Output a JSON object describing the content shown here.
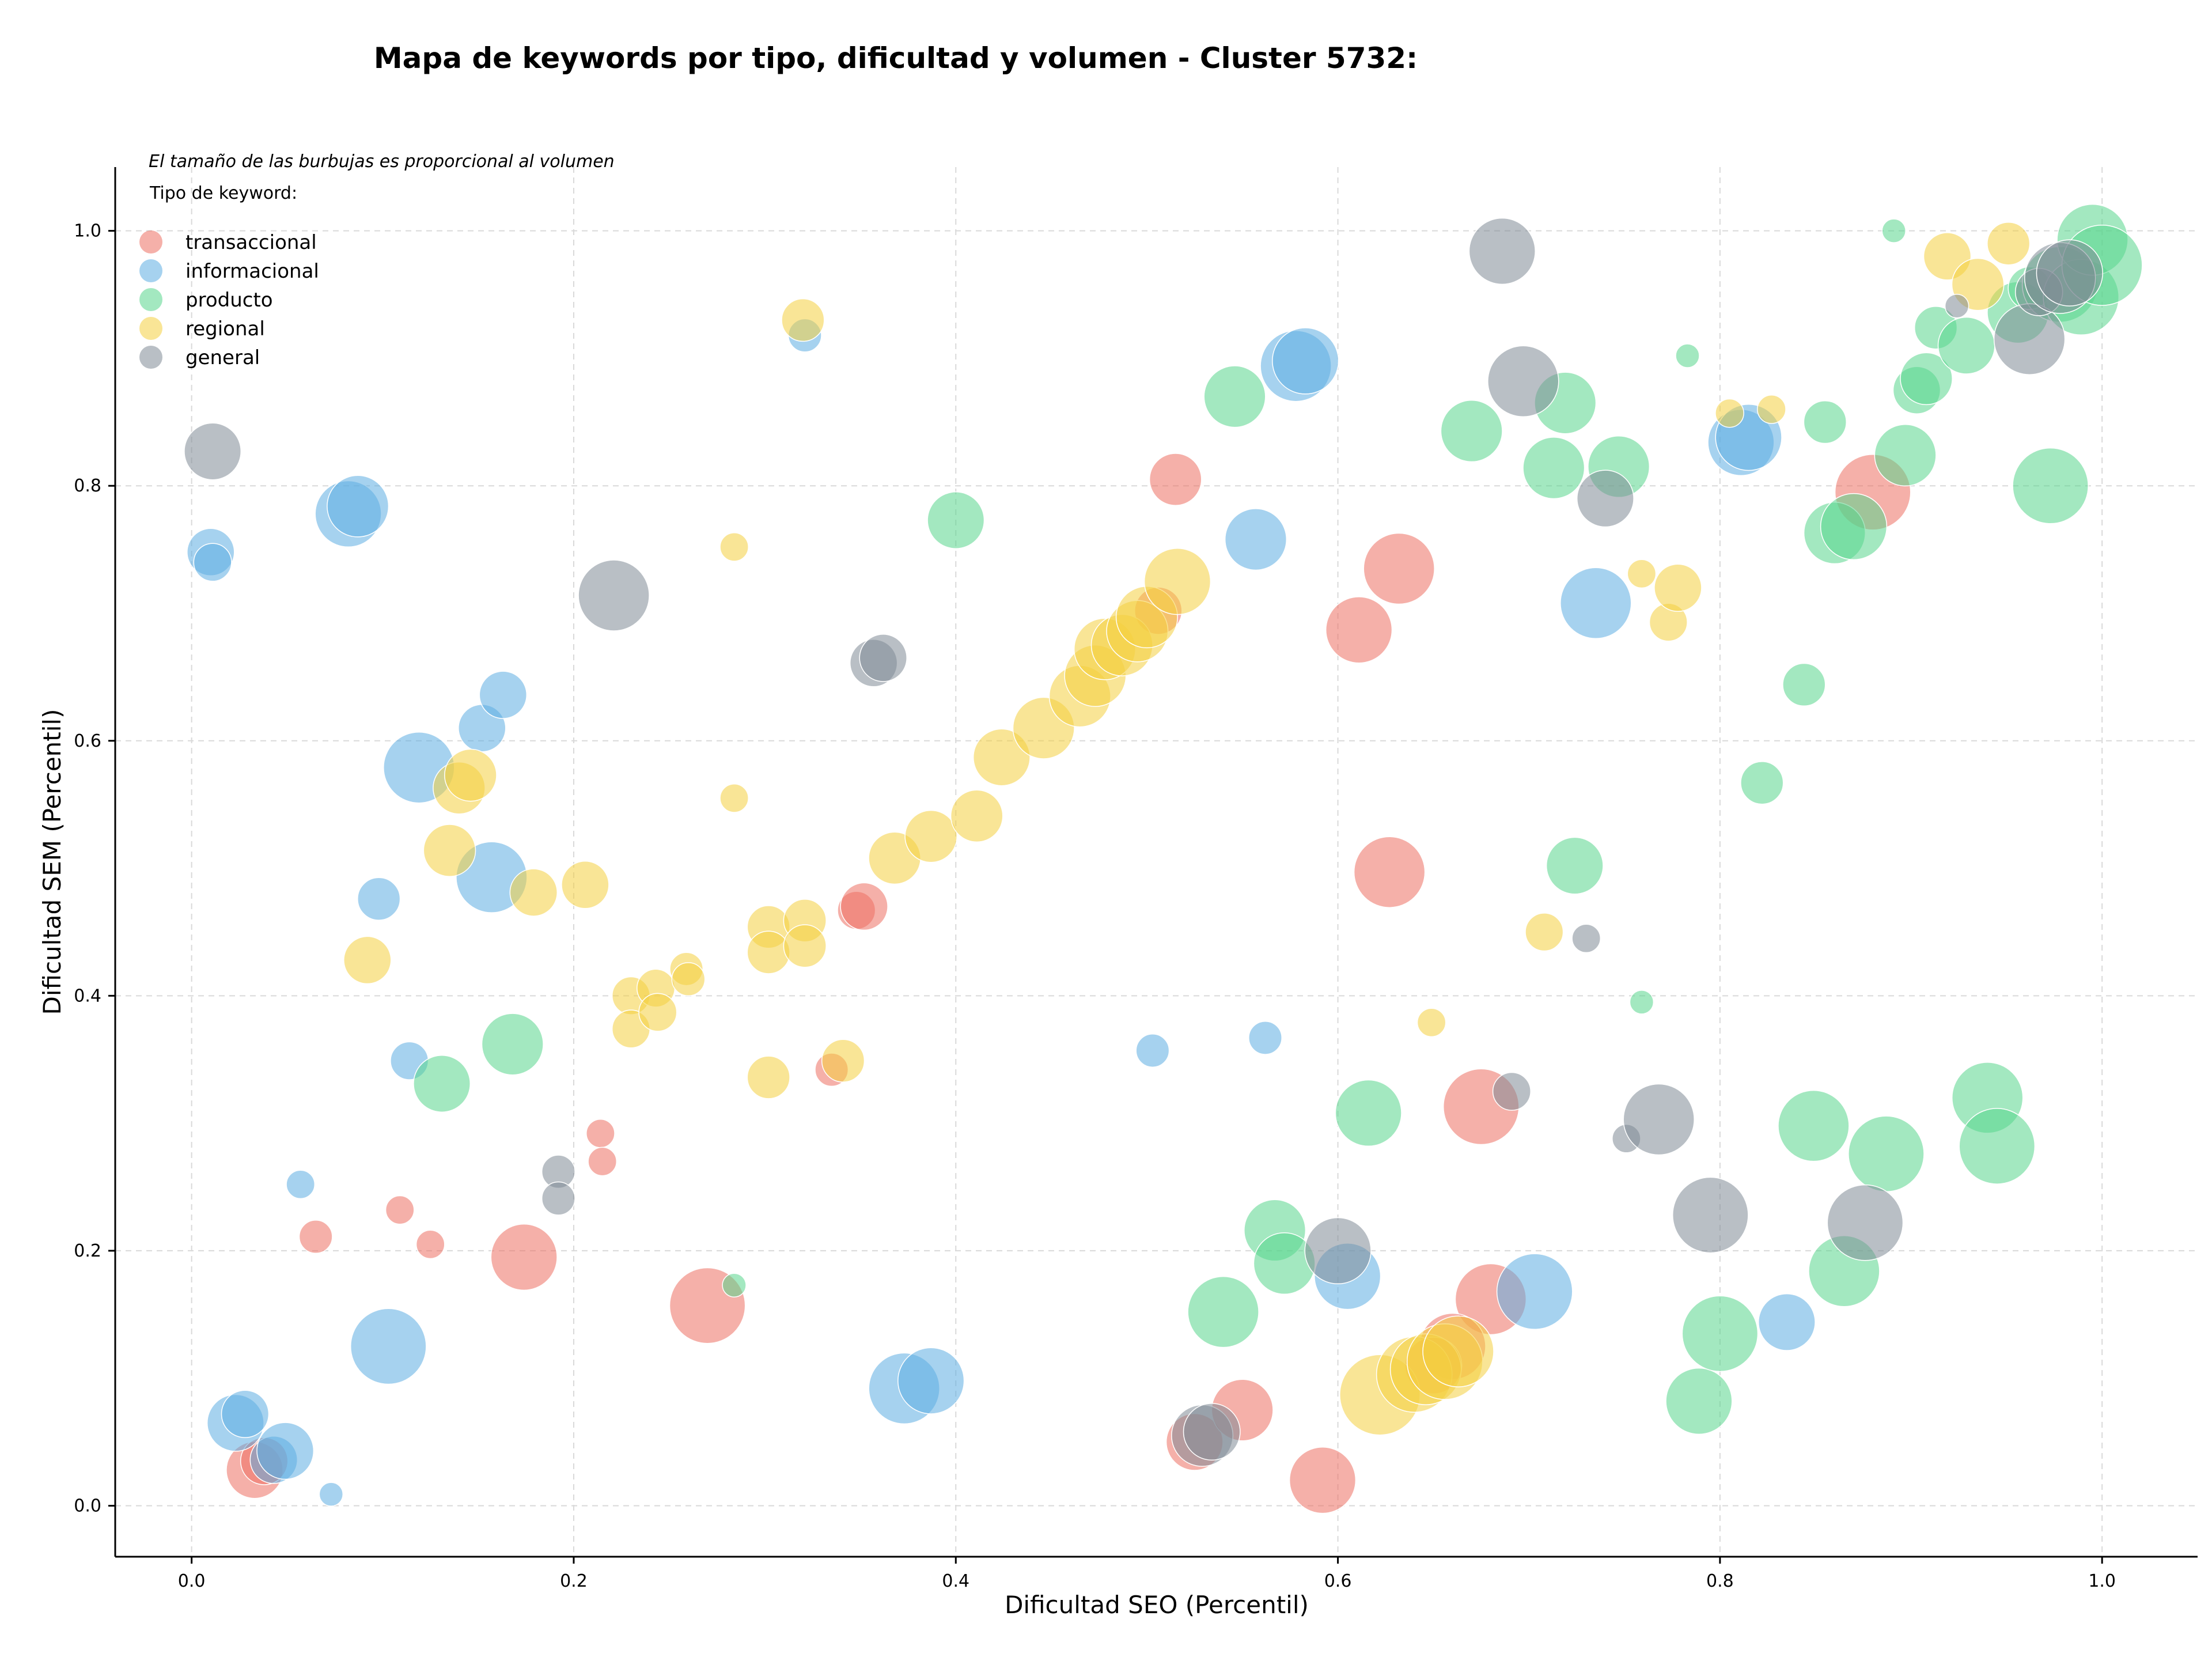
{
  "chart_data": {
    "type": "scatter",
    "title": "Mapa de keywords por tipo, dificultad y volumen - Cluster 5732:",
    "xlabel": "Dificultad SEO (Percentil)",
    "ylabel": "Dificultad SEM (Percentil)",
    "note": "El tamaño de las burbujas es proporcional al volumen",
    "legend_title": "Tipo de keyword:",
    "legend_position": "top-left",
    "grid": true,
    "xlim": [
      -0.04,
      1.05
    ],
    "ylim": [
      -0.04,
      1.05
    ],
    "x_ticks": [
      "0.0",
      "0.2",
      "0.4",
      "0.6",
      "0.8",
      "1.0"
    ],
    "y_ticks": [
      "0.0",
      "0.2",
      "0.4",
      "0.6",
      "0.8",
      "1.0"
    ],
    "size_scale": "radius proportional to volume (relative units 1-10)",
    "series": [
      {
        "name": "transaccional",
        "color": "#ec7063",
        "points": [
          [
            0.033,
            0.028,
            6
          ],
          [
            0.038,
            0.035,
            5
          ],
          [
            0.065,
            0.211,
            3.5
          ],
          [
            0.109,
            0.232,
            3
          ],
          [
            0.125,
            0.205,
            3
          ],
          [
            0.174,
            0.195,
            7
          ],
          [
            0.214,
            0.292,
            3
          ],
          [
            0.215,
            0.27,
            3
          ],
          [
            0.27,
            0.157,
            8
          ],
          [
            0.335,
            0.342,
            3.5
          ],
          [
            0.348,
            0.467,
            4
          ],
          [
            0.352,
            0.47,
            5
          ],
          [
            0.506,
            0.702,
            5
          ],
          [
            0.515,
            0.805,
            5.5
          ],
          [
            0.525,
            0.05,
            6
          ],
          [
            0.55,
            0.075,
            6.5
          ],
          [
            0.592,
            0.02,
            7
          ],
          [
            0.611,
            0.687,
            7
          ],
          [
            0.632,
            0.735,
            7.5
          ],
          [
            0.627,
            0.497,
            7.5
          ],
          [
            0.675,
            0.313,
            8
          ],
          [
            0.68,
            0.162,
            7.5
          ],
          [
            0.66,
            0.125,
            7
          ],
          [
            0.65,
            0.11,
            6
          ],
          [
            0.88,
            0.795,
            8
          ]
        ]
      },
      {
        "name": "informacional",
        "color": "#5dade2",
        "points": [
          [
            0.01,
            0.748,
            5
          ],
          [
            0.011,
            0.74,
            4
          ],
          [
            0.023,
            0.065,
            6
          ],
          [
            0.028,
            0.072,
            5
          ],
          [
            0.043,
            0.036,
            5
          ],
          [
            0.049,
            0.043,
            6
          ],
          [
            0.057,
            0.252,
            3
          ],
          [
            0.073,
            0.009,
            2.5
          ],
          [
            0.082,
            0.778,
            7
          ],
          [
            0.087,
            0.784,
            6.5
          ],
          [
            0.098,
            0.476,
            4.5
          ],
          [
            0.103,
            0.125,
            8
          ],
          [
            0.114,
            0.349,
            4
          ],
          [
            0.119,
            0.579,
            7.5
          ],
          [
            0.152,
            0.61,
            5
          ],
          [
            0.163,
            0.636,
            5
          ],
          [
            0.157,
            0.493,
            7.5
          ],
          [
            0.321,
            0.918,
            3.5
          ],
          [
            0.373,
            0.092,
            7.5
          ],
          [
            0.387,
            0.098,
            7
          ],
          [
            0.503,
            0.357,
            3.5
          ],
          [
            0.557,
            0.758,
            6.5
          ],
          [
            0.562,
            0.367,
            3.5
          ],
          [
            0.578,
            0.894,
            7.5
          ],
          [
            0.583,
            0.898,
            7
          ],
          [
            0.605,
            0.18,
            7
          ],
          [
            0.703,
            0.168,
            8
          ],
          [
            0.735,
            0.708,
            7.5
          ],
          [
            0.811,
            0.834,
            7
          ],
          [
            0.815,
            0.838,
            7
          ],
          [
            0.835,
            0.144,
            6
          ]
        ]
      },
      {
        "name": "producto",
        "color": "#58d68d",
        "points": [
          [
            0.131,
            0.331,
            6
          ],
          [
            0.168,
            0.362,
            6.5
          ],
          [
            0.284,
            0.173,
            2.5
          ],
          [
            0.4,
            0.773,
            6
          ],
          [
            0.54,
            0.152,
            7.5
          ],
          [
            0.546,
            0.87,
            6.5
          ],
          [
            0.567,
            0.216,
            6.5
          ],
          [
            0.572,
            0.19,
            6.5
          ],
          [
            0.616,
            0.308,
            7
          ],
          [
            0.67,
            0.843,
            6.5
          ],
          [
            0.713,
            0.814,
            6.5
          ],
          [
            0.719,
            0.865,
            6.5
          ],
          [
            0.724,
            0.502,
            6
          ],
          [
            0.747,
            0.815,
            6.5
          ],
          [
            0.759,
            0.395,
            2.5
          ],
          [
            0.783,
            0.902,
            2.5
          ],
          [
            0.789,
            0.082,
            7
          ],
          [
            0.8,
            0.135,
            8
          ],
          [
            0.822,
            0.567,
            4.5
          ],
          [
            0.844,
            0.644,
            4.5
          ],
          [
            0.849,
            0.298,
            7.5
          ],
          [
            0.855,
            0.85,
            4.5
          ],
          [
            0.86,
            0.763,
            6.5
          ],
          [
            0.865,
            0.184,
            7.5
          ],
          [
            0.87,
            0.768,
            7
          ],
          [
            0.887,
            0.276,
            8
          ],
          [
            0.891,
            1.0,
            2.5
          ],
          [
            0.897,
            0.824,
            6.5
          ],
          [
            0.903,
            0.875,
            5
          ],
          [
            0.908,
            0.884,
            5.5
          ],
          [
            0.913,
            0.924,
            4.5
          ],
          [
            0.929,
            0.91,
            6
          ],
          [
            0.94,
            0.32,
            7.5
          ],
          [
            0.945,
            0.282,
            8
          ],
          [
            0.956,
            0.936,
            6.5
          ],
          [
            0.962,
            0.955,
            4.5
          ],
          [
            0.973,
            0.8,
            8
          ],
          [
            0.978,
            0.958,
            8
          ],
          [
            0.989,
            0.948,
            8
          ],
          [
            0.995,
            0.993,
            7.5
          ],
          [
            1.0,
            0.973,
            8.5
          ]
        ]
      },
      {
        "name": "regional",
        "color": "#f4d03f",
        "points": [
          [
            0.092,
            0.428,
            5
          ],
          [
            0.135,
            0.514,
            5.5
          ],
          [
            0.14,
            0.563,
            5.5
          ],
          [
            0.146,
            0.573,
            5.5
          ],
          [
            0.179,
            0.481,
            5
          ],
          [
            0.206,
            0.487,
            5
          ],
          [
            0.23,
            0.4,
            4
          ],
          [
            0.23,
            0.374,
            4
          ],
          [
            0.243,
            0.406,
            4
          ],
          [
            0.244,
            0.387,
            4
          ],
          [
            0.259,
            0.421,
            3.5
          ],
          [
            0.26,
            0.413,
            3.5
          ],
          [
            0.284,
            0.752,
            3
          ],
          [
            0.284,
            0.555,
            3
          ],
          [
            0.302,
            0.454,
            4.5
          ],
          [
            0.302,
            0.434,
            4.5
          ],
          [
            0.302,
            0.336,
            4.5
          ],
          [
            0.32,
            0.93,
            4.5
          ],
          [
            0.321,
            0.459,
            4.5
          ],
          [
            0.321,
            0.439,
            4.5
          ],
          [
            0.341,
            0.349,
            4.5
          ],
          [
            0.368,
            0.508,
            5.5
          ],
          [
            0.387,
            0.525,
            5.5
          ],
          [
            0.411,
            0.541,
            5.5
          ],
          [
            0.424,
            0.587,
            6
          ],
          [
            0.446,
            0.61,
            6.5
          ],
          [
            0.465,
            0.635,
            6.5
          ],
          [
            0.473,
            0.651,
            6.5
          ],
          [
            0.478,
            0.672,
            6.5
          ],
          [
            0.487,
            0.675,
            6.5
          ],
          [
            0.495,
            0.686,
            6.5
          ],
          [
            0.5,
            0.697,
            6.5
          ],
          [
            0.516,
            0.725,
            7
          ],
          [
            0.622,
            0.087,
            8.5
          ],
          [
            0.64,
            0.103,
            8
          ],
          [
            0.646,
            0.107,
            7.5
          ],
          [
            0.649,
            0.379,
            3
          ],
          [
            0.656,
            0.113,
            8
          ],
          [
            0.663,
            0.121,
            7.5
          ],
          [
            0.708,
            0.45,
            4
          ],
          [
            0.759,
            0.731,
            3
          ],
          [
            0.773,
            0.693,
            4
          ],
          [
            0.778,
            0.72,
            5
          ],
          [
            0.805,
            0.857,
            3
          ],
          [
            0.827,
            0.86,
            3
          ],
          [
            0.919,
            0.98,
            5
          ],
          [
            0.935,
            0.958,
            5.5
          ],
          [
            0.951,
            0.99,
            4.5
          ]
        ]
      },
      {
        "name": "general",
        "color": "#808b96",
        "points": [
          [
            0.011,
            0.827,
            6
          ],
          [
            0.192,
            0.262,
            3.5
          ],
          [
            0.192,
            0.241,
            3.5
          ],
          [
            0.221,
            0.714,
            7.5
          ],
          [
            0.357,
            0.661,
            5
          ],
          [
            0.362,
            0.665,
            5
          ],
          [
            0.529,
            0.055,
            6.5
          ],
          [
            0.534,
            0.058,
            6
          ],
          [
            0.6,
            0.2,
            7
          ],
          [
            0.686,
            0.984,
            7
          ],
          [
            0.691,
            0.325,
            4
          ],
          [
            0.697,
            0.882,
            7.5
          ],
          [
            0.73,
            0.445,
            3
          ],
          [
            0.74,
            0.79,
            6
          ],
          [
            0.751,
            0.288,
            3
          ],
          [
            0.768,
            0.303,
            7.5
          ],
          [
            0.795,
            0.228,
            8
          ],
          [
            0.876,
            0.222,
            8
          ],
          [
            0.924,
            0.941,
            2.5
          ],
          [
            0.962,
            0.915,
            7.5
          ],
          [
            0.967,
            0.952,
            5
          ],
          [
            0.978,
            0.963,
            7.5
          ],
          [
            0.983,
            0.967,
            7
          ]
        ]
      }
    ]
  }
}
